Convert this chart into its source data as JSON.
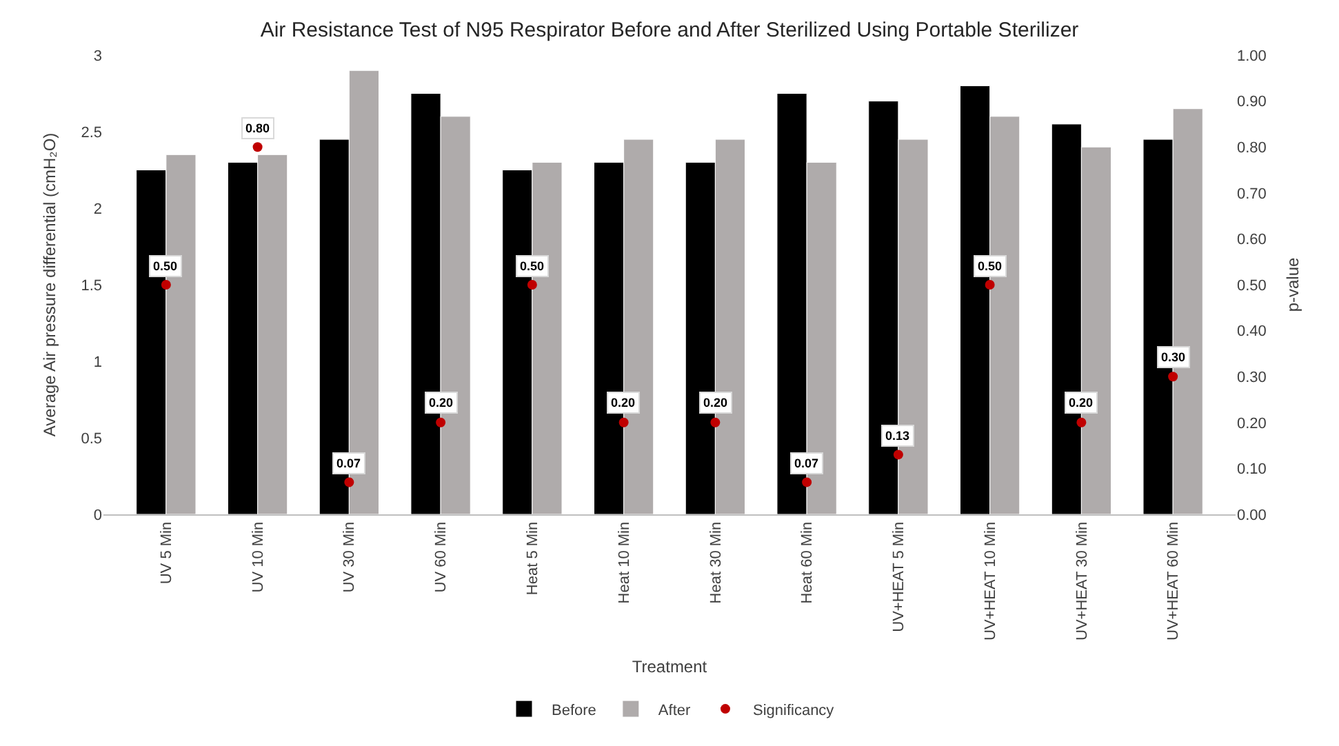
{
  "chart_data": {
    "type": "bar",
    "title": "Air Resistance Test of N95 Respirator Before and After Sterilized Using Portable Sterilizer",
    "xlabel": "Treatment",
    "ylabel": "Average Air pressure differential (cmH₂O)",
    "y2label": "p-value",
    "categories": [
      "UV 5 Min",
      "UV 10 Min",
      "UV 30 Min",
      "UV 60 Min",
      "Heat 5 Min",
      "Heat 10 Min",
      "Heat 30 Min",
      "Heat 60 Min",
      "UV+HEAT 5 Min",
      "UV+HEAT 10 Min",
      "UV+HEAT 30 Min",
      "UV+HEAT 60 Min"
    ],
    "series": [
      {
        "name": "Before",
        "color": "#000000",
        "values": [
          2.25,
          2.3,
          2.45,
          2.75,
          2.25,
          2.3,
          2.3,
          2.75,
          2.7,
          2.8,
          2.55,
          2.45
        ]
      },
      {
        "name": "After",
        "color": "#afabab",
        "values": [
          2.35,
          2.35,
          2.9,
          2.6,
          2.3,
          2.45,
          2.45,
          2.3,
          2.45,
          2.6,
          2.4,
          2.65
        ]
      },
      {
        "name": "Significancy",
        "type": "scatter",
        "axis": "y2",
        "marker": "circle",
        "color": "#c00000",
        "values": [
          0.5,
          0.8,
          0.07,
          0.2,
          0.5,
          0.2,
          0.2,
          0.07,
          0.13,
          0.5,
          0.2,
          0.3
        ],
        "value_labels": [
          "0.50",
          "0.80",
          "0.07",
          "0.20",
          "0.50",
          "0.20",
          "0.20",
          "0.07",
          "0.13",
          "0.50",
          "0.20",
          "0.30"
        ]
      }
    ],
    "ylim": [
      0,
      3
    ],
    "yticks": [
      0,
      0.5,
      1,
      1.5,
      2,
      2.5,
      3
    ],
    "y2lim": [
      0,
      1
    ],
    "y2ticks": [
      {
        "value": 0,
        "label": "0.00"
      },
      {
        "value": 0.1,
        "label": "0.10"
      },
      {
        "value": 0.2,
        "label": "0.20"
      },
      {
        "value": 0.3,
        "label": "0.30"
      },
      {
        "value": 0.4,
        "label": "0.40"
      },
      {
        "value": 0.5,
        "label": "0.50"
      },
      {
        "value": 0.6,
        "label": "0.60"
      },
      {
        "value": 0.7,
        "label": "0.70"
      },
      {
        "value": 0.8,
        "label": "0.80"
      },
      {
        "value": 0.9,
        "label": "0.90"
      },
      {
        "value": 1,
        "label": "1.00"
      }
    ],
    "grid": false,
    "legend": "bottom"
  }
}
